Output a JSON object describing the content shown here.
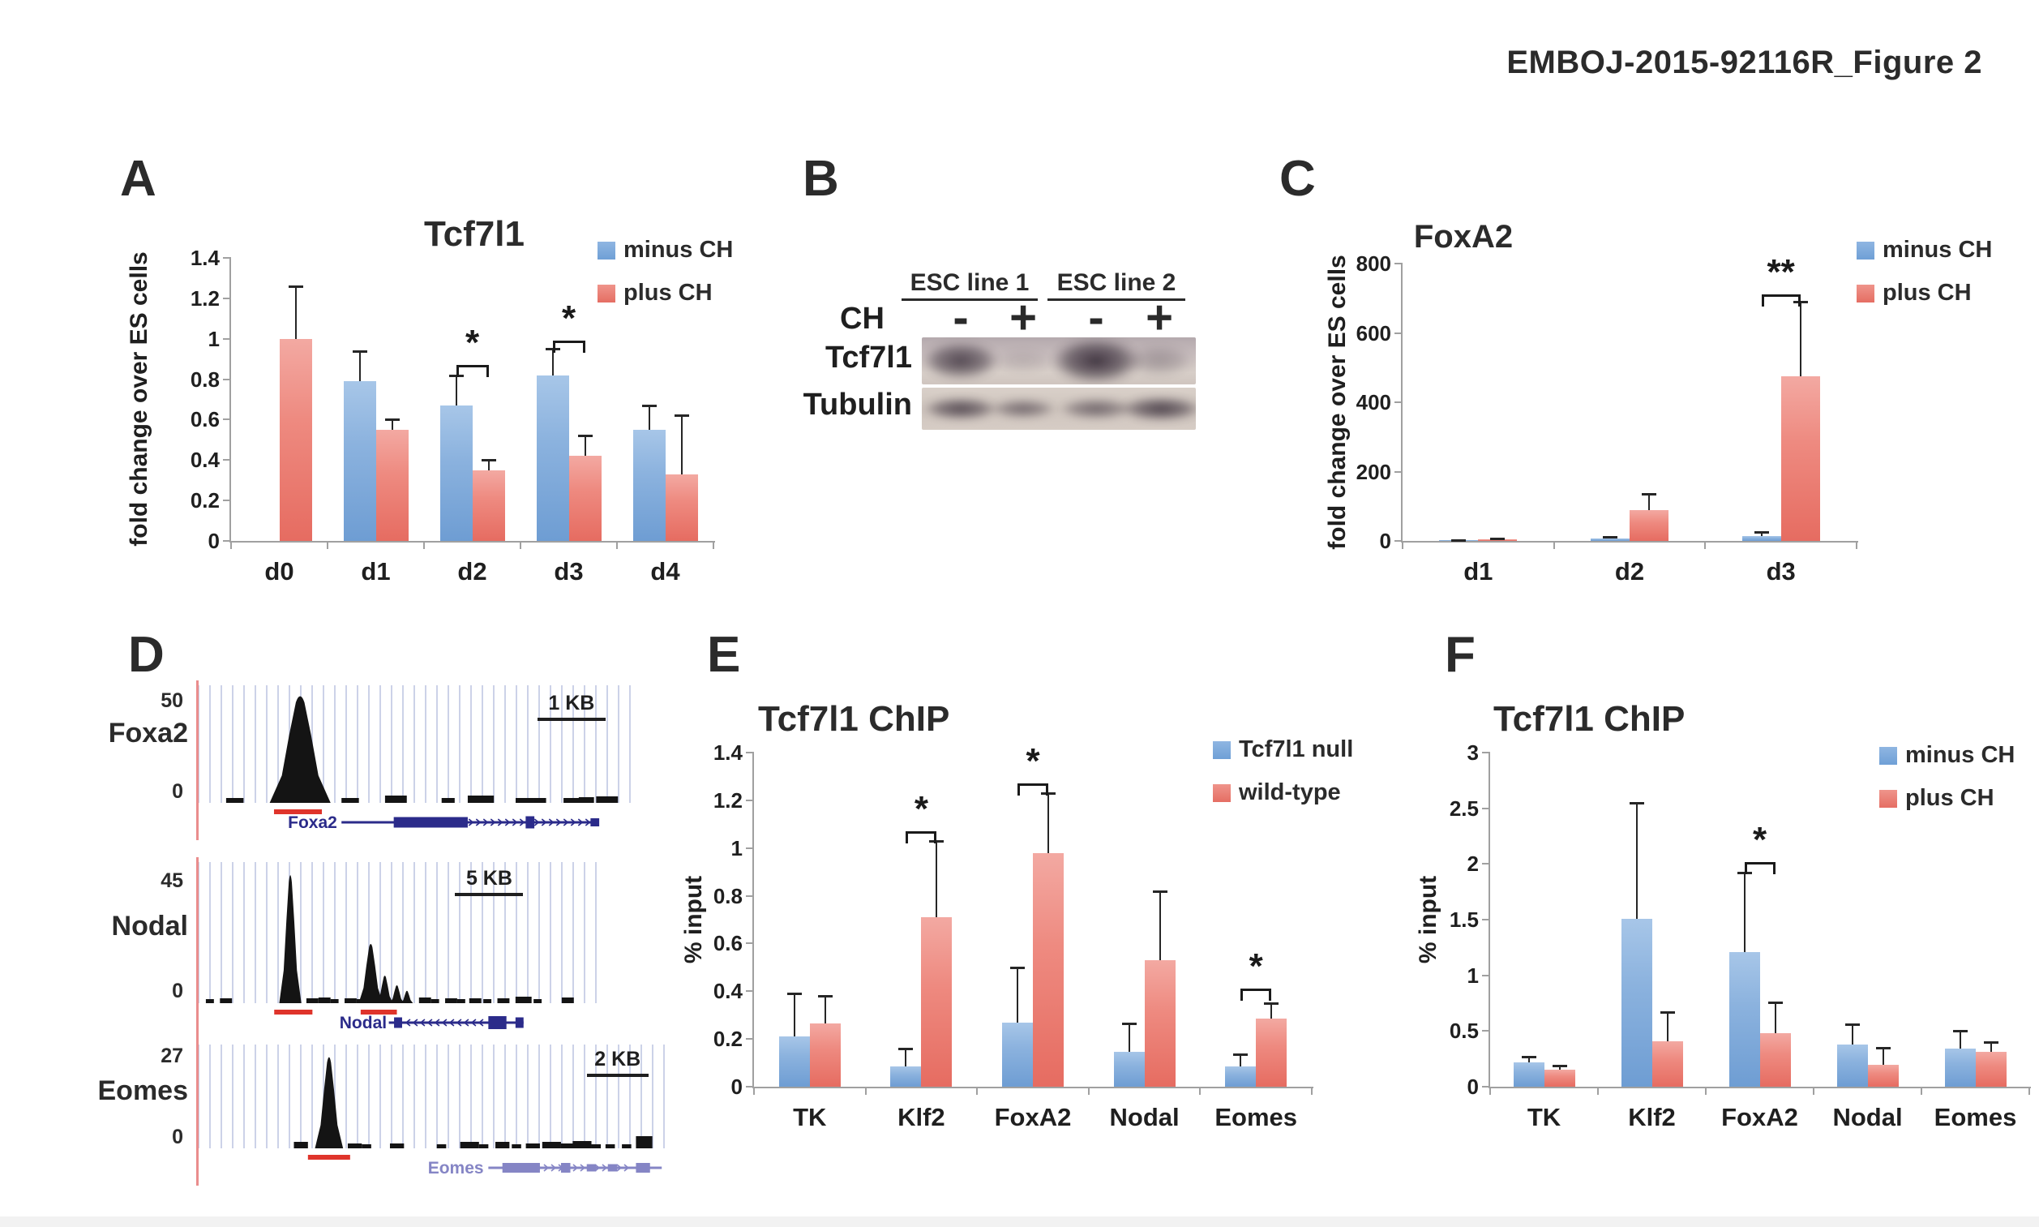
{
  "header": {
    "title": "EMBOJ-2015-92116R_Figure 2"
  },
  "panels": {
    "a": "A",
    "b": "B",
    "c": "C",
    "d": "D",
    "e": "E",
    "f": "F"
  },
  "colors": {
    "minus_blue": "#7aa9da",
    "plus_red": "#e87c72",
    "peak_black": "#141414",
    "chip_red_bar": "#df342b",
    "gene_navy": "#2b2b8a",
    "gene_lilac": "#8585c5"
  },
  "blot": {
    "col_headers": [
      "ESC line 1",
      "ESC line 2"
    ],
    "row_condition": "CH",
    "lane_signs": [
      "-",
      "+",
      "-",
      "+"
    ],
    "row_labels": [
      "Tcf7l1",
      "Tubulin"
    ],
    "bands_tcf7l1": [
      {
        "c": 48,
        "w": 94,
        "h": 46,
        "o": 0.82
      },
      {
        "c": 125,
        "w": 70,
        "h": 30,
        "o": 0.12
      },
      {
        "c": 215,
        "w": 110,
        "h": 56,
        "o": 0.95
      },
      {
        "c": 293,
        "w": 80,
        "h": 38,
        "o": 0.28
      }
    ],
    "bands_tubulin": [
      {
        "c": 48,
        "w": 92,
        "h": 28,
        "o": 0.8
      },
      {
        "c": 125,
        "w": 80,
        "h": 24,
        "o": 0.6
      },
      {
        "c": 215,
        "w": 90,
        "h": 26,
        "o": 0.62
      },
      {
        "c": 295,
        "w": 100,
        "h": 30,
        "o": 0.85
      }
    ]
  },
  "chart_data": [
    {
      "id": "A",
      "type": "bar",
      "title": "Tcf7l1",
      "ylabel": "fold change over ES cells",
      "ylim": [
        0,
        1.4
      ],
      "ystep": 0.2,
      "grid": false,
      "legend_position": "top-right",
      "categories": [
        "d0",
        "d1",
        "d2",
        "d3",
        "d4"
      ],
      "series": [
        {
          "name": "minus CH",
          "color": "blue",
          "values": [
            null,
            0.79,
            0.67,
            0.82,
            0.55
          ],
          "errors": [
            null,
            0.15,
            0.15,
            0.13,
            0.12
          ]
        },
        {
          "name": "plus CH",
          "color": "red",
          "values": [
            1.0,
            0.55,
            0.35,
            0.42,
            0.33
          ],
          "errors": [
            0.26,
            0.05,
            0.05,
            0.1,
            0.29
          ]
        }
      ],
      "sig": [
        {
          "cat": 2,
          "label": "*",
          "y": 0.87
        },
        {
          "cat": 3,
          "label": "*",
          "y": 0.99
        }
      ]
    },
    {
      "id": "C",
      "type": "bar",
      "title": "FoxA2",
      "ylabel": "fold change over ES cells",
      "ylim": [
        0,
        800
      ],
      "ystep": 200,
      "grid": false,
      "legend_position": "top-right",
      "categories": [
        "d1",
        "d2",
        "d3"
      ],
      "series": [
        {
          "name": "minus CH",
          "color": "blue",
          "values": [
            2,
            6,
            13
          ],
          "errors": [
            1,
            5,
            12
          ]
        },
        {
          "name": "plus CH",
          "color": "red",
          "values": [
            5,
            90,
            475
          ],
          "errors": [
            3,
            45,
            215
          ]
        }
      ],
      "sig": [
        {
          "cat": 2,
          "label": "**",
          "y": 712
        }
      ]
    },
    {
      "id": "E",
      "type": "bar",
      "title": "Tcf7l1 ChIP",
      "ylabel": "% input",
      "ylim": [
        0,
        1.4
      ],
      "ystep": 0.2,
      "grid": false,
      "legend_position": "top-right",
      "categories": [
        "TK",
        "Klf2",
        "FoxA2",
        "Nodal",
        "Eomes"
      ],
      "series": [
        {
          "name": "Tcf7l1 null",
          "color": "blue",
          "values": [
            0.21,
            0.085,
            0.27,
            0.145,
            0.085
          ],
          "errors": [
            0.18,
            0.075,
            0.23,
            0.12,
            0.05
          ]
        },
        {
          "name": "wild-type",
          "color": "red",
          "values": [
            0.265,
            0.71,
            0.98,
            0.53,
            0.285
          ],
          "errors": [
            0.115,
            0.32,
            0.25,
            0.29,
            0.065
          ]
        }
      ],
      "sig": [
        {
          "cat": 1,
          "label": "*",
          "y": 1.07
        },
        {
          "cat": 2,
          "label": "*",
          "y": 1.27
        },
        {
          "cat": 4,
          "label": "*",
          "y": 0.41
        }
      ]
    },
    {
      "id": "F",
      "type": "bar",
      "title": "Tcf7l1 ChIP",
      "ylabel": "% input",
      "ylim": [
        0,
        3
      ],
      "ystep": 0.5,
      "grid": false,
      "legend_position": "top-right",
      "categories": [
        "TK",
        "Klf2",
        "FoxA2",
        "Nodal",
        "Eomes"
      ],
      "series": [
        {
          "name": "minus CH",
          "color": "blue",
          "values": [
            0.22,
            1.51,
            1.21,
            0.38,
            0.34
          ],
          "errors": [
            0.05,
            1.04,
            0.71,
            0.18,
            0.16
          ]
        },
        {
          "name": "plus CH",
          "color": "red",
          "values": [
            0.15,
            0.41,
            0.48,
            0.2,
            0.31
          ],
          "errors": [
            0.04,
            0.26,
            0.28,
            0.15,
            0.09
          ]
        }
      ],
      "sig": [
        {
          "cat": 2,
          "label": "*",
          "y": 2.02
        }
      ]
    },
    {
      "id": "D",
      "type": "genome-track",
      "tracks": [
        {
          "name": "Foxa2",
          "ymax_label": "50",
          "zero_label": "0",
          "scale_label": "1 KB",
          "peaks": [
            {
              "x": 23.5,
              "w": 14,
              "h": 93
            }
          ],
          "blocks": [
            [
              6.5,
              4,
              6
            ],
            [
              33,
              4,
              6
            ],
            [
              43,
              5,
              9
            ],
            [
              56,
              3,
              6
            ],
            [
              62,
              6,
              9
            ],
            [
              73,
              4,
              6
            ],
            [
              77,
              3,
              6
            ],
            [
              84,
              4,
              6
            ],
            [
              87.5,
              3.5,
              7
            ],
            [
              91.5,
              5,
              8
            ]
          ],
          "red_bars": [
            [
              17.5,
              11
            ]
          ],
          "gene": {
            "label": "Foxa2",
            "color": "#2b2b8a",
            "label_end": 32,
            "line": [
              33,
              92
            ],
            "exons": [
              [
                53.5,
                17,
                13
              ],
              [
                76.3,
                2,
                15
              ],
              [
                91.2,
                2,
                10
              ]
            ],
            "chevrons": [
              63,
              90
            ],
            "dir": "right"
          }
        },
        {
          "name": "Nodal",
          "ymax_label": "45",
          "zero_label": "0",
          "scale_label": "5 KB",
          "peaks": [
            {
              "x": 23,
              "w": 5.5,
              "h": 93
            },
            {
              "x": 43,
              "w": 6,
              "h": 43
            },
            {
              "x": 46.5,
              "w": 4,
              "h": 20
            },
            {
              "x": 49.5,
              "w": 3.5,
              "h": 13
            },
            {
              "x": 52,
              "w": 3,
              "h": 9
            }
          ],
          "blocks": [
            [
              2,
              2,
              5
            ],
            [
              5.5,
              3,
              6
            ],
            [
              27,
              3,
              6
            ],
            [
              30,
              3,
              7
            ],
            [
              33,
              2,
              5
            ],
            [
              36.5,
              3,
              6
            ],
            [
              39.5,
              2,
              5
            ],
            [
              55,
              3,
              7
            ],
            [
              58,
              2,
              5
            ],
            [
              61.5,
              3,
              6
            ],
            [
              64.5,
              2,
              5
            ],
            [
              67.5,
              3,
              6
            ],
            [
              71,
              2,
              5
            ],
            [
              74.5,
              3,
              6
            ],
            [
              79,
              4,
              8
            ],
            [
              83.5,
              2,
              5
            ],
            [
              90.5,
              3,
              7
            ]
          ],
          "red_bars": [
            [
              19,
              9.5
            ],
            [
              40.5,
              9
            ]
          ],
          "gene": {
            "label": "Nodal",
            "color": "#2b2b8a",
            "label_end": 47,
            "line": [
              47.5,
              81
            ],
            "exons": [
              [
                49.8,
                2,
                13
              ],
              [
                74.5,
                4.5,
                16
              ],
              [
                80,
                2,
                13
              ]
            ],
            "chevrons": [
              52,
              71
            ],
            "dir": "left"
          }
        },
        {
          "name": "Eomes",
          "ymax_label": "27",
          "zero_label": "0",
          "scale_label": "2 KB",
          "peaks": [
            {
              "x": 28,
              "w": 6,
              "h": 90
            }
          ],
          "blocks": [
            [
              20.5,
              3,
              8
            ],
            [
              32,
              3,
              6
            ],
            [
              35,
              2,
              5
            ],
            [
              41,
              3,
              6
            ],
            [
              51,
              2,
              5
            ],
            [
              56,
              4,
              8
            ],
            [
              60,
              2,
              5
            ],
            [
              63.5,
              3,
              8
            ],
            [
              67,
              2,
              5
            ],
            [
              70,
              3,
              6
            ],
            [
              73.5,
              4,
              8
            ],
            [
              77.5,
              3,
              6
            ],
            [
              80,
              4,
              9
            ],
            [
              84,
              2,
              5
            ],
            [
              87,
              2,
              5
            ],
            [
              90.5,
              2,
              5
            ],
            [
              93.5,
              3.5,
              15
            ]
          ],
          "red_bars": [
            [
              23.5,
              9
            ]
          ],
          "gene": {
            "label": "Eomes",
            "color": "#8585c5",
            "label_end": 61,
            "line": [
              62,
              99
            ],
            "exons": [
              [
                69,
                8,
                12
              ],
              [
                78.5,
                2,
                12
              ],
              [
                84,
                2,
                9
              ],
              [
                88.5,
                2,
                9
              ],
              [
                95,
                3,
                12
              ]
            ],
            "chevrons": [
              73,
              93
            ],
            "dir": "right"
          }
        }
      ]
    }
  ]
}
